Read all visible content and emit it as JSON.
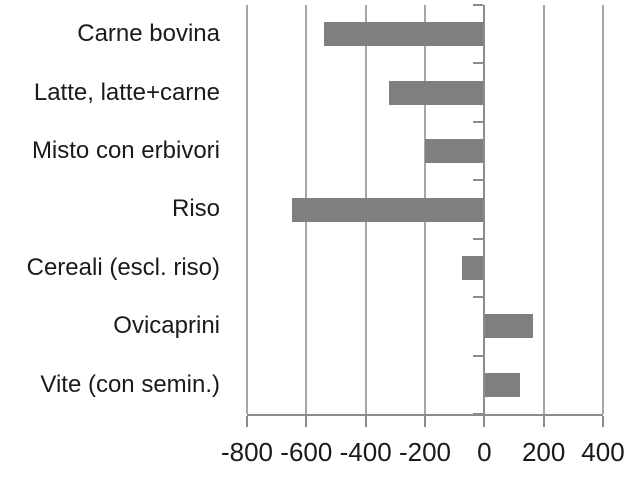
{
  "chart_data": {
    "type": "bar",
    "orientation": "horizontal",
    "title": "",
    "xlabel": "",
    "ylabel": "",
    "categories": [
      "Carne bovina",
      "Latte, latte+carne",
      "Misto con erbivori",
      "Riso",
      "Cereali (escl. riso)",
      "Ovicaprini",
      "Vite (con semin.)"
    ],
    "values": [
      -540,
      -320,
      -200,
      -650,
      -75,
      165,
      120
    ],
    "xlim": [
      -800,
      400
    ],
    "x_ticks": [
      -800,
      -600,
      -400,
      -200,
      0,
      200,
      400
    ],
    "x_tick_labels": [
      "-800",
      "-600",
      "-400",
      "-200",
      "0",
      "200",
      "400"
    ],
    "grid": "vertical-on",
    "legend": "none",
    "colors": {
      "bar": "#7f7f7f",
      "gridline": "#a6a6a6",
      "axis": "#8c8c8c",
      "text": "#1a1a1a",
      "background": "#ffffff"
    }
  }
}
